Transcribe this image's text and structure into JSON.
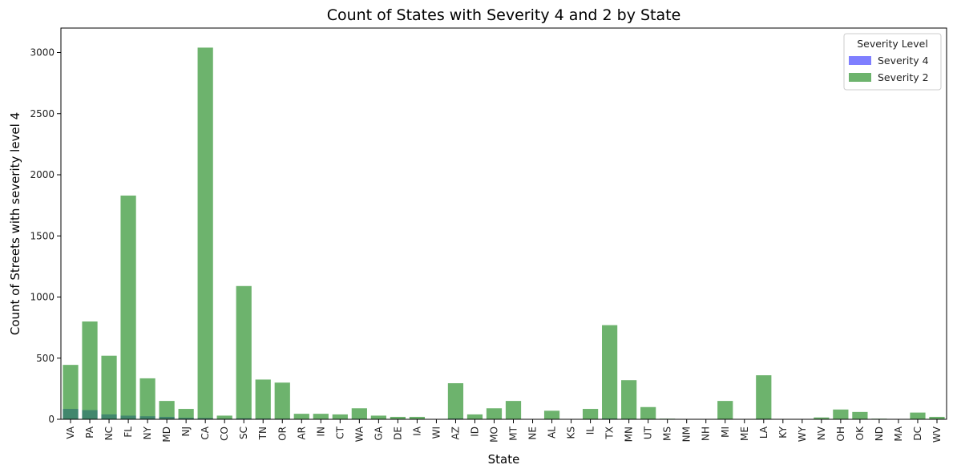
{
  "chart_data": {
    "type": "bar",
    "title": "Count of States with Severity 4 and 2 by State",
    "xlabel": "State",
    "ylabel": "Count of Streets with severity level 4",
    "ylim": [
      0,
      3200
    ],
    "yticks": [
      0,
      500,
      1000,
      1500,
      2000,
      2500,
      3000
    ],
    "grid": false,
    "legend": {
      "title": "Severity Level",
      "placement": "top-right"
    },
    "categories": [
      "VA",
      "PA",
      "NC",
      "FL",
      "NY",
      "MD",
      "NJ",
      "CA",
      "CO",
      "SC",
      "TN",
      "OR",
      "AR",
      "IN",
      "CT",
      "WA",
      "GA",
      "DE",
      "IA",
      "WI",
      "AZ",
      "ID",
      "MO",
      "MT",
      "NE",
      "AL",
      "KS",
      "IL",
      "TX",
      "MN",
      "UT",
      "MS",
      "NM",
      "NH",
      "MI",
      "ME",
      "LA",
      "KY",
      "WY",
      "NV",
      "OH",
      "OK",
      "ND",
      "MA",
      "DC",
      "WV"
    ],
    "series": [
      {
        "name": "Severity 4",
        "color": "#0000ff",
        "opacity": 0.5,
        "values": [
          85,
          75,
          40,
          30,
          25,
          20,
          12,
          10,
          5,
          8,
          6,
          5,
          3,
          3,
          3,
          4,
          2,
          2,
          2,
          0,
          6,
          2,
          3,
          3,
          0,
          2,
          0,
          3,
          6,
          4,
          2,
          0,
          0,
          0,
          3,
          0,
          4,
          0,
          0,
          1,
          2,
          2,
          0,
          0,
          2,
          1
        ]
      },
      {
        "name": "Severity 2",
        "color": "#228b22",
        "opacity": 0.66,
        "values": [
          445,
          800,
          520,
          1830,
          335,
          150,
          85,
          3040,
          30,
          1090,
          325,
          300,
          45,
          45,
          40,
          90,
          30,
          20,
          20,
          0,
          295,
          40,
          90,
          150,
          0,
          70,
          0,
          85,
          770,
          320,
          100,
          5,
          0,
          0,
          150,
          0,
          360,
          0,
          0,
          15,
          80,
          60,
          5,
          0,
          55,
          20
        ]
      }
    ]
  }
}
